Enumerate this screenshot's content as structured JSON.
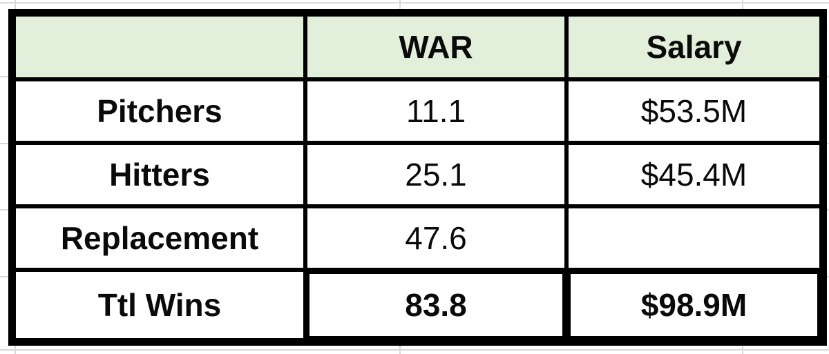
{
  "table": {
    "header": {
      "col0": "",
      "col1": "WAR",
      "col2": "Salary"
    },
    "rows": [
      {
        "label": "Pitchers",
        "war": "11.1",
        "salary": "$53.5M"
      },
      {
        "label": "Hitters",
        "war": "25.1",
        "salary": "$45.4M"
      },
      {
        "label": "Replacement",
        "war": "47.6",
        "salary": ""
      },
      {
        "label": "Ttl Wins",
        "war": "83.8",
        "salary": "$98.9M"
      }
    ]
  },
  "colors": {
    "header_bg": "#e2efda",
    "table_border": "#000000",
    "gridline": "#d8d8d8",
    "cell_bg": "#ffffff",
    "text": "#0a0a0a"
  }
}
